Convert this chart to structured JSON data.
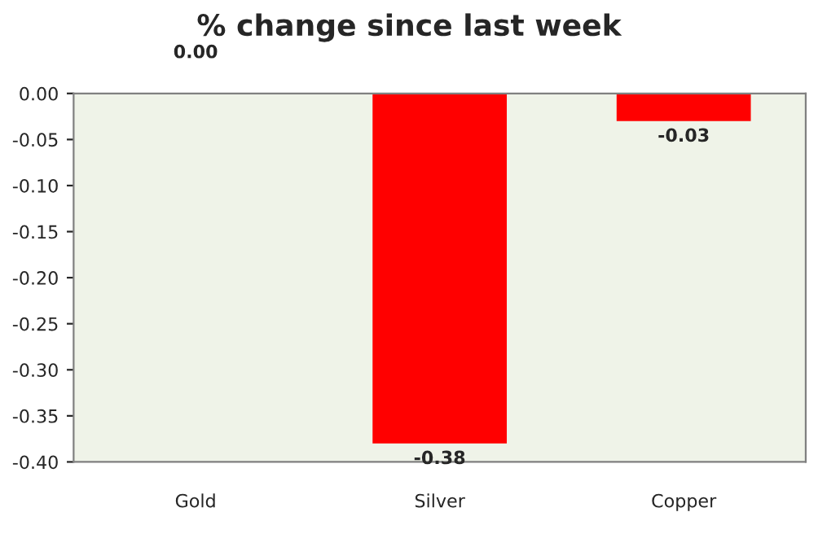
{
  "chart_data": {
    "type": "bar",
    "title": "% change since last week",
    "categories": [
      "Gold",
      "Silver",
      "Copper"
    ],
    "values": [
      0.0,
      -0.38,
      -0.03
    ],
    "value_labels": [
      "0.00",
      "-0.38",
      "-0.03"
    ],
    "color": "#ff0000",
    "ylim": [
      -0.4,
      0.0
    ],
    "yticks": [
      {
        "value": 0.0,
        "label": "0.00"
      },
      {
        "value": -0.05,
        "label": "-0.05"
      },
      {
        "value": -0.1,
        "label": "-0.10"
      },
      {
        "value": -0.15,
        "label": "-0.15"
      },
      {
        "value": -0.2,
        "label": "-0.20"
      },
      {
        "value": -0.25,
        "label": "-0.25"
      },
      {
        "value": -0.3,
        "label": "-0.30"
      },
      {
        "value": -0.35,
        "label": "-0.35"
      },
      {
        "value": -0.4,
        "label": "-0.40"
      }
    ],
    "grid": false,
    "legend": false
  }
}
